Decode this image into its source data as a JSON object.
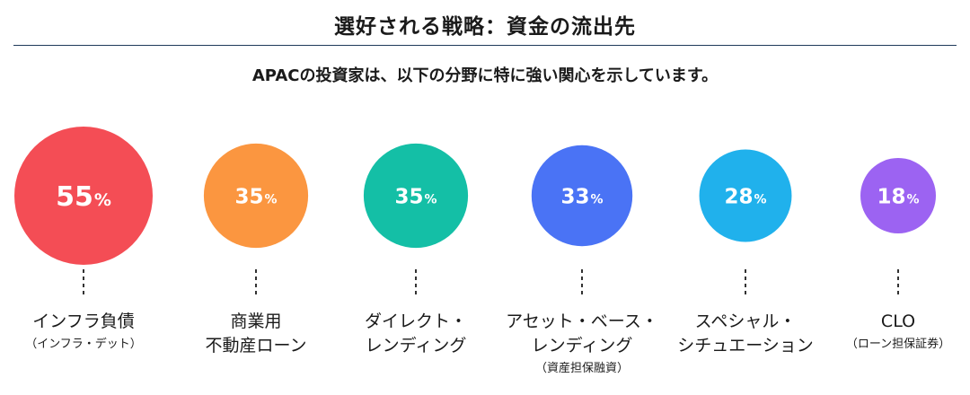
{
  "header": {
    "title": "選好される戦略：資金の流出先",
    "subtitle": "APACの投資家は、以下の分野に特に強い関心を示しています。"
  },
  "chart_data": {
    "type": "bubble",
    "unit": "%",
    "categories": [
      {
        "lines": [
          "インフラ負債"
        ],
        "note": "（インフラ・デット）",
        "value": 55,
        "color": "#f44d55"
      },
      {
        "lines": [
          "商業用",
          "不動産ローン"
        ],
        "note": "",
        "value": 35,
        "color": "#fb9640"
      },
      {
        "lines": [
          "ダイレクト・",
          "レンディング"
        ],
        "note": "",
        "value": 35,
        "color": "#14bfa6"
      },
      {
        "lines": [
          "アセット・ベース・",
          "レンディング"
        ],
        "note": "（資産担保融資）",
        "value": 33,
        "color": "#4a73f5"
      },
      {
        "lines": [
          "スペシャル・",
          "シチュエーション"
        ],
        "note": "",
        "value": 28,
        "color": "#20b1ec"
      },
      {
        "lines": [
          "CLO"
        ],
        "note": "（ローン担保証券）",
        "value": 18,
        "color": "#9c63f2"
      }
    ]
  }
}
